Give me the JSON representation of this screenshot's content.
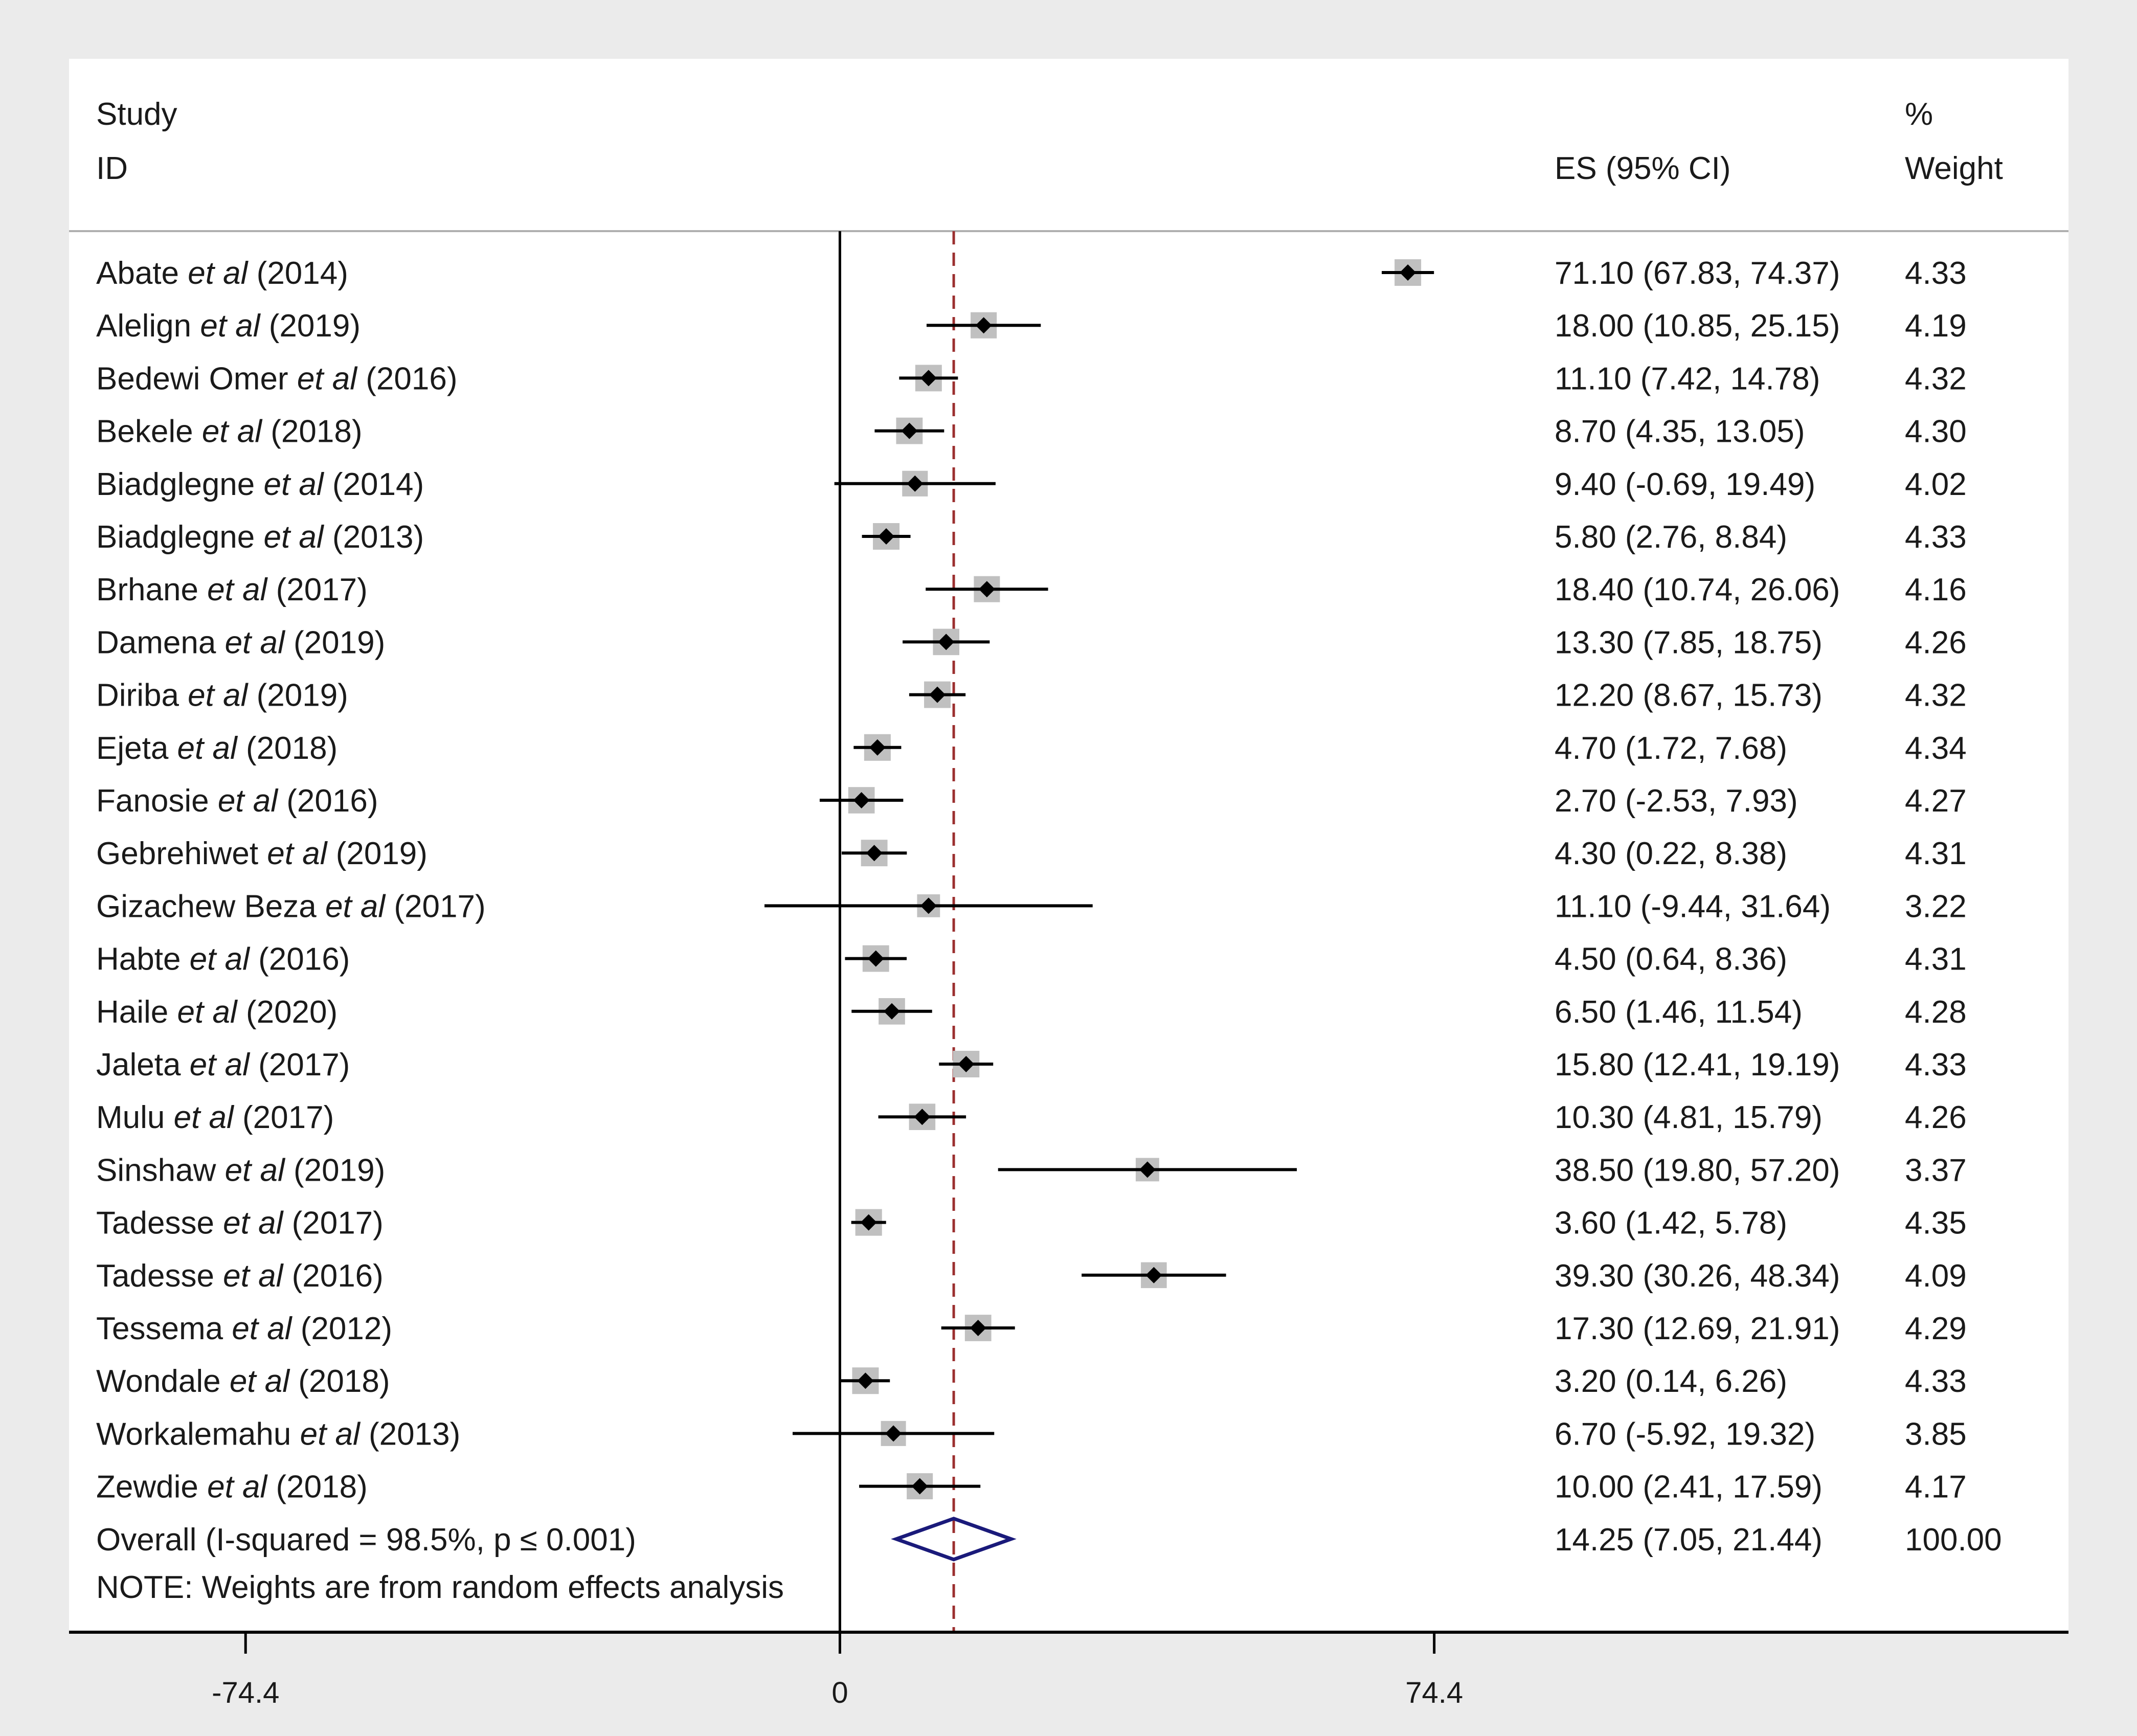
{
  "header": {
    "study_line1": "Study",
    "study_line2": "ID",
    "es_label": "ES (95% CI)",
    "weight_line1": "%",
    "weight_line2": "Weight"
  },
  "note": "NOTE: Weights are from random effects analysis",
  "colors": {
    "outer_bg": "#ebebeb",
    "panel_bg": "#ffffff",
    "marker": "#000000",
    "weight_box": "#c0c0c0",
    "pooled_line": "#9b2f2f",
    "diamond": "#1a1a7a",
    "axis": "#000000"
  },
  "chart_data": {
    "type": "forest",
    "xlim": [
      -96.5,
      153.8
    ],
    "xticks": [
      {
        "value": -74.4,
        "label": "-74.4"
      },
      {
        "value": 0,
        "label": "0"
      },
      {
        "value": 74.4,
        "label": "74.4"
      }
    ],
    "null_line": 0,
    "pooled_estimate": 14.25,
    "studies": [
      {
        "author": "Abate",
        "year": "(2014)",
        "es": 71.1,
        "lo": 67.83,
        "hi": 74.37,
        "ci_text": "71.10 (67.83, 74.37)",
        "weight": 4.33,
        "weight_text": "4.33"
      },
      {
        "author": "Alelign",
        "year": "(2019)",
        "es": 18.0,
        "lo": 10.85,
        "hi": 25.15,
        "ci_text": "18.00 (10.85, 25.15)",
        "weight": 4.19,
        "weight_text": "4.19"
      },
      {
        "author": "Bedewi Omer",
        "year": "(2016)",
        "es": 11.1,
        "lo": 7.42,
        "hi": 14.78,
        "ci_text": "11.10 (7.42, 14.78)",
        "weight": 4.32,
        "weight_text": "4.32"
      },
      {
        "author": "Bekele",
        "year": "(2018)",
        "es": 8.7,
        "lo": 4.35,
        "hi": 13.05,
        "ci_text": "8.70 (4.35, 13.05)",
        "weight": 4.3,
        "weight_text": "4.30"
      },
      {
        "author": "Biadglegne",
        "year": "(2014)",
        "es": 9.4,
        "lo": -0.69,
        "hi": 19.49,
        "ci_text": "9.40 (-0.69, 19.49)",
        "weight": 4.02,
        "weight_text": "4.02"
      },
      {
        "author": "Biadglegne",
        "year": "(2013)",
        "es": 5.8,
        "lo": 2.76,
        "hi": 8.84,
        "ci_text": "5.80 (2.76, 8.84)",
        "weight": 4.33,
        "weight_text": "4.33"
      },
      {
        "author": "Brhane",
        "year": "(2017)",
        "es": 18.4,
        "lo": 10.74,
        "hi": 26.06,
        "ci_text": "18.40 (10.74, 26.06)",
        "weight": 4.16,
        "weight_text": "4.16"
      },
      {
        "author": "Damena",
        "year": "(2019)",
        "es": 13.3,
        "lo": 7.85,
        "hi": 18.75,
        "ci_text": "13.30 (7.85, 18.75)",
        "weight": 4.26,
        "weight_text": "4.26"
      },
      {
        "author": "Diriba",
        "year": "(2019)",
        "es": 12.2,
        "lo": 8.67,
        "hi": 15.73,
        "ci_text": "12.20 (8.67, 15.73)",
        "weight": 4.32,
        "weight_text": "4.32"
      },
      {
        "author": "Ejeta",
        "year": "(2018)",
        "es": 4.7,
        "lo": 1.72,
        "hi": 7.68,
        "ci_text": "4.70 (1.72, 7.68)",
        "weight": 4.34,
        "weight_text": "4.34"
      },
      {
        "author": "Fanosie",
        "year": "(2016)",
        "es": 2.7,
        "lo": -2.53,
        "hi": 7.93,
        "ci_text": "2.70 (-2.53, 7.93)",
        "weight": 4.27,
        "weight_text": "4.27"
      },
      {
        "author": "Gebrehiwet",
        "year": "(2019)",
        "es": 4.3,
        "lo": 0.22,
        "hi": 8.38,
        "ci_text": "4.30 (0.22, 8.38)",
        "weight": 4.31,
        "weight_text": "4.31"
      },
      {
        "author": "Gizachew Beza",
        "year": "(2017)",
        "es": 11.1,
        "lo": -9.44,
        "hi": 31.64,
        "ci_text": "11.10 (-9.44, 31.64)",
        "weight": 3.22,
        "weight_text": "3.22"
      },
      {
        "author": "Habte",
        "year": "(2016)",
        "es": 4.5,
        "lo": 0.64,
        "hi": 8.36,
        "ci_text": "4.50 (0.64, 8.36)",
        "weight": 4.31,
        "weight_text": "4.31"
      },
      {
        "author": "Haile",
        "year": "(2020)",
        "es": 6.5,
        "lo": 1.46,
        "hi": 11.54,
        "ci_text": "6.50 (1.46, 11.54)",
        "weight": 4.28,
        "weight_text": "4.28"
      },
      {
        "author": "Jaleta",
        "year": "(2017)",
        "es": 15.8,
        "lo": 12.41,
        "hi": 19.19,
        "ci_text": "15.80 (12.41, 19.19)",
        "weight": 4.33,
        "weight_text": "4.33"
      },
      {
        "author": "Mulu",
        "year": "(2017)",
        "es": 10.3,
        "lo": 4.81,
        "hi": 15.79,
        "ci_text": "10.30 (4.81, 15.79)",
        "weight": 4.26,
        "weight_text": "4.26"
      },
      {
        "author": "Sinshaw",
        "year": "(2019)",
        "es": 38.5,
        "lo": 19.8,
        "hi": 57.2,
        "ci_text": "38.50 (19.80, 57.20)",
        "weight": 3.37,
        "weight_text": "3.37"
      },
      {
        "author": "Tadesse",
        "year": "(2017)",
        "es": 3.6,
        "lo": 1.42,
        "hi": 5.78,
        "ci_text": "3.60 (1.42, 5.78)",
        "weight": 4.35,
        "weight_text": "4.35"
      },
      {
        "author": "Tadesse",
        "year": "(2016)",
        "es": 39.3,
        "lo": 30.26,
        "hi": 48.34,
        "ci_text": "39.30 (30.26, 48.34)",
        "weight": 4.09,
        "weight_text": "4.09"
      },
      {
        "author": "Tessema",
        "year": "(2012)",
        "es": 17.3,
        "lo": 12.69,
        "hi": 21.91,
        "ci_text": "17.30 (12.69, 21.91)",
        "weight": 4.29,
        "weight_text": "4.29"
      },
      {
        "author": "Wondale",
        "year": "(2018)",
        "es": 3.2,
        "lo": 0.14,
        "hi": 6.26,
        "ci_text": "3.20 (0.14, 6.26)",
        "weight": 4.33,
        "weight_text": "4.33"
      },
      {
        "author": "Workalemahu",
        "year": "(2013)",
        "es": 6.7,
        "lo": -5.92,
        "hi": 19.32,
        "ci_text": "6.70 (-5.92, 19.32)",
        "weight": 3.85,
        "weight_text": "3.85"
      },
      {
        "author": "Zewdie",
        "year": "(2018)",
        "es": 10.0,
        "lo": 2.41,
        "hi": 17.59,
        "ci_text": "10.00 (2.41, 17.59)",
        "weight": 4.17,
        "weight_text": "4.17"
      }
    ],
    "et_al": "et al",
    "overall": {
      "label": "Overall (I-squared = 98.5%, p ≤ 0.001)",
      "es": 14.25,
      "lo": 7.05,
      "hi": 21.44,
      "ci_text": "14.25 (7.05, 21.44)",
      "weight_text": "100.00"
    }
  }
}
